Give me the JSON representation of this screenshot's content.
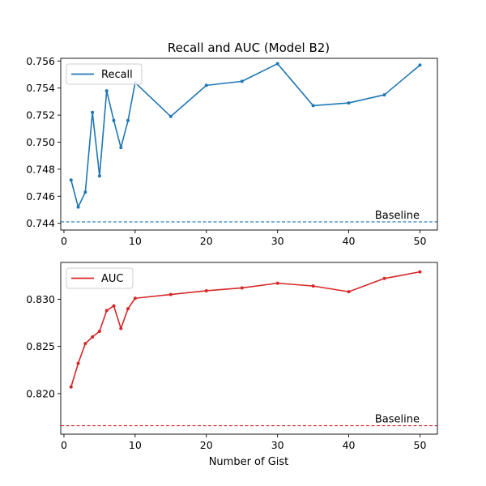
{
  "chart_data": {
    "type": "line",
    "title": "Recall and AUC (Model B2)",
    "xlabel": "Number of Gist",
    "x": [
      1,
      2,
      3,
      4,
      5,
      6,
      7,
      8,
      9,
      10,
      15,
      20,
      25,
      30,
      35,
      40,
      45,
      50
    ],
    "xlim": [
      -0.45,
      52.45
    ],
    "xticks": [
      0,
      10,
      20,
      30,
      40,
      50
    ],
    "panels": [
      {
        "name": "recall-panel",
        "series": [
          {
            "name": "Recall",
            "color": "#1f77b4",
            "values": [
              0.7472,
              0.7452,
              0.7463,
              0.7522,
              0.7475,
              0.7538,
              0.7516,
              0.7496,
              0.7516,
              0.7544,
              0.7519,
              0.7542,
              0.7545,
              0.7558,
              0.7527,
              0.7529,
              0.7535,
              0.7557
            ]
          }
        ],
        "baseline": {
          "label": "Baseline",
          "value": 0.7441,
          "color": "#1f77b4"
        },
        "ylim": [
          0.7435,
          0.7562
        ],
        "yticks": [
          0.744,
          0.746,
          0.748,
          0.75,
          0.752,
          0.754,
          0.756
        ],
        "ytick_labels": [
          "0.744",
          "0.746",
          "0.748",
          "0.750",
          "0.752",
          "0.754",
          "0.756"
        ],
        "legend": "top-left"
      },
      {
        "name": "auc-panel",
        "series": [
          {
            "name": "AUC",
            "color": "#d62728",
            "values": [
              0.8207,
              0.8232,
              0.8253,
              0.826,
              0.8266,
              0.8288,
              0.8293,
              0.8269,
              0.829,
              0.8301,
              0.8305,
              0.8309,
              0.8312,
              0.8317,
              0.8314,
              0.8308,
              0.8322,
              0.8329
            ]
          }
        ],
        "baseline": {
          "label": "Baseline",
          "value": 0.8166,
          "color": "#d62728"
        },
        "ylim": [
          0.8157,
          0.8339
        ],
        "yticks": [
          0.82,
          0.825,
          0.83
        ],
        "ytick_labels": [
          "0.820",
          "0.825",
          "0.830"
        ],
        "legend": "top-left"
      }
    ]
  }
}
